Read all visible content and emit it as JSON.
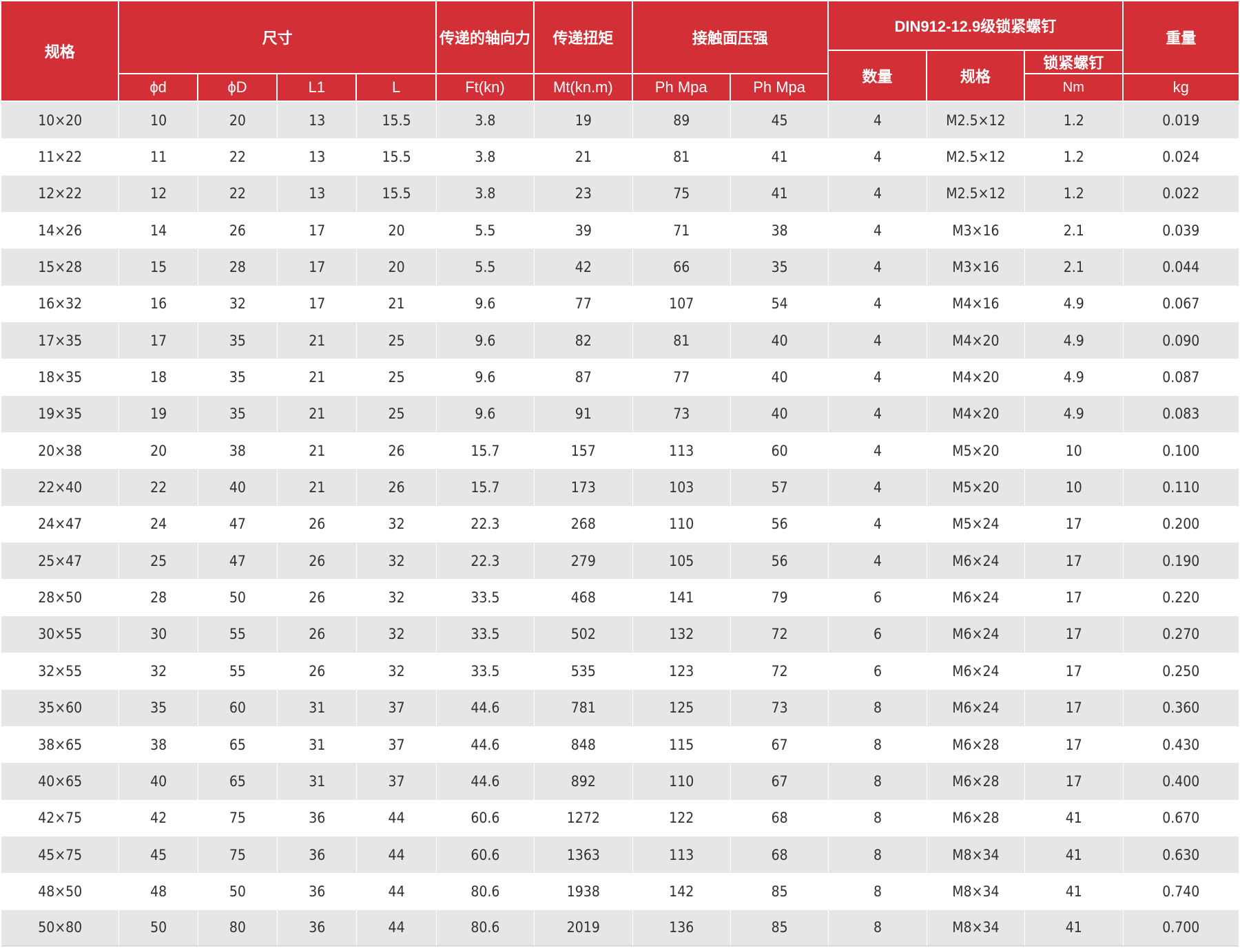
{
  "header": {
    "spec": "规格",
    "dimensions": "尺寸",
    "axial_force": "传递的轴向力",
    "torque": "传递扭矩",
    "contact_pressure": "接触面压强",
    "screw_group": "DIN912-12.9级锁紧螺钉",
    "weight": "重量",
    "phi_d": "ϕd",
    "phi_D": "ϕD",
    "L1": "L1",
    "L": "L",
    "ft_unit": "Ft(kn)",
    "mt_unit": "Mt(kn.m)",
    "ph1": "Ph Mpa",
    "ph2": "Ph Mpa",
    "screw_qty": "数量",
    "screw_spec": "规格",
    "screw_torque": "锁紧螺钉",
    "nm": "Nm",
    "kg": "kg"
  },
  "columns": [
    "规格",
    "ϕd",
    "ϕD",
    "L1",
    "L",
    "Ft(kn)",
    "Mt(kn.m)",
    "Ph Mpa",
    "Ph Mpa",
    "数量",
    "规格",
    "Nm",
    "kg"
  ],
  "rows": [
    [
      "10×20",
      "10",
      "20",
      "13",
      "15.5",
      "3.8",
      "19",
      "89",
      "45",
      "4",
      "M2.5×12",
      "1.2",
      "0.019"
    ],
    [
      "11×22",
      "11",
      "22",
      "13",
      "15.5",
      "3.8",
      "21",
      "81",
      "41",
      "4",
      "M2.5×12",
      "1.2",
      "0.024"
    ],
    [
      "12×22",
      "12",
      "22",
      "13",
      "15.5",
      "3.8",
      "23",
      "75",
      "41",
      "4",
      "M2.5×12",
      "1.2",
      "0.022"
    ],
    [
      "14×26",
      "14",
      "26",
      "17",
      "20",
      "5.5",
      "39",
      "71",
      "38",
      "4",
      "M3×16",
      "2.1",
      "0.039"
    ],
    [
      "15×28",
      "15",
      "28",
      "17",
      "20",
      "5.5",
      "42",
      "66",
      "35",
      "4",
      "M3×16",
      "2.1",
      "0.044"
    ],
    [
      "16×32",
      "16",
      "32",
      "17",
      "21",
      "9.6",
      "77",
      "107",
      "54",
      "4",
      "M4×16",
      "4.9",
      "0.067"
    ],
    [
      "17×35",
      "17",
      "35",
      "21",
      "25",
      "9.6",
      "82",
      "81",
      "40",
      "4",
      "M4×20",
      "4.9",
      "0.090"
    ],
    [
      "18×35",
      "18",
      "35",
      "21",
      "25",
      "9.6",
      "87",
      "77",
      "40",
      "4",
      "M4×20",
      "4.9",
      "0.087"
    ],
    [
      "19×35",
      "19",
      "35",
      "21",
      "25",
      "9.6",
      "91",
      "73",
      "40",
      "4",
      "M4×20",
      "4.9",
      "0.083"
    ],
    [
      "20×38",
      "20",
      "38",
      "21",
      "26",
      "15.7",
      "157",
      "113",
      "60",
      "4",
      "M5×20",
      "10",
      "0.100"
    ],
    [
      "22×40",
      "22",
      "40",
      "21",
      "26",
      "15.7",
      "173",
      "103",
      "57",
      "4",
      "M5×20",
      "10",
      "0.110"
    ],
    [
      "24×47",
      "24",
      "47",
      "26",
      "32",
      "22.3",
      "268",
      "110",
      "56",
      "4",
      "M5×24",
      "17",
      "0.200"
    ],
    [
      "25×47",
      "25",
      "47",
      "26",
      "32",
      "22.3",
      "279",
      "105",
      "56",
      "4",
      "M6×24",
      "17",
      "0.190"
    ],
    [
      "28×50",
      "28",
      "50",
      "26",
      "32",
      "33.5",
      "468",
      "141",
      "79",
      "6",
      "M6×24",
      "17",
      "0.220"
    ],
    [
      "30×55",
      "30",
      "55",
      "26",
      "32",
      "33.5",
      "502",
      "132",
      "72",
      "6",
      "M6×24",
      "17",
      "0.270"
    ],
    [
      "32×55",
      "32",
      "55",
      "26",
      "32",
      "33.5",
      "535",
      "123",
      "72",
      "6",
      "M6×24",
      "17",
      "0.250"
    ],
    [
      "35×60",
      "35",
      "60",
      "31",
      "37",
      "44.6",
      "781",
      "125",
      "73",
      "8",
      "M6×24",
      "17",
      "0.360"
    ],
    [
      "38×65",
      "38",
      "65",
      "31",
      "37",
      "44.6",
      "848",
      "115",
      "67",
      "8",
      "M6×28",
      "17",
      "0.430"
    ],
    [
      "40×65",
      "40",
      "65",
      "31",
      "37",
      "44.6",
      "892",
      "110",
      "67",
      "8",
      "M6×28",
      "17",
      "0.400"
    ],
    [
      "42×75",
      "42",
      "75",
      "36",
      "44",
      "60.6",
      "1272",
      "122",
      "68",
      "8",
      "M6×28",
      "41",
      "0.670"
    ],
    [
      "45×75",
      "45",
      "75",
      "36",
      "44",
      "60.6",
      "1363",
      "113",
      "68",
      "8",
      "M8×34",
      "41",
      "0.630"
    ],
    [
      "48×50",
      "48",
      "50",
      "36",
      "44",
      "80.6",
      "1938",
      "142",
      "85",
      "8",
      "M8×34",
      "41",
      "0.740"
    ],
    [
      "50×80",
      "50",
      "80",
      "36",
      "44",
      "80.6",
      "2019",
      "136",
      "85",
      "8",
      "M8×34",
      "41",
      "0.700"
    ]
  ],
  "colors": {
    "header_background": "#d32f36",
    "header_text": "#ffffff",
    "row_stripe": "#e6e6e6",
    "row_plain": "#ffffff",
    "body_text": "#303030"
  }
}
